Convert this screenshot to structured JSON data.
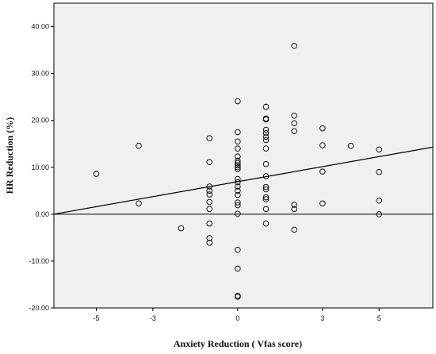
{
  "chart_data": {
    "type": "scatter",
    "title": "",
    "xlabel": "Anxiety Reduction ( Vfas score)",
    "ylabel": "HR Reduction (%)",
    "xlim": [
      -6.5,
      6.9
    ],
    "ylim": [
      -20,
      45
    ],
    "x_ticks": [
      -5,
      -3,
      0,
      3,
      5
    ],
    "x_tick_labels": [
      "-5",
      "-3",
      "0",
      "3",
      "5"
    ],
    "y_ticks": [
      -20,
      -10,
      0,
      10,
      20,
      30,
      40
    ],
    "y_tick_labels": [
      "-20.00",
      "-10.00",
      "0.00",
      "10.00",
      "20.00",
      "30.00",
      "40.00"
    ],
    "grid": false,
    "background": "#f0f0f0",
    "reference_line_y": 0,
    "fit_line": {
      "points": [
        [
          -6.5,
          0.0
        ],
        [
          6.9,
          14.3
        ]
      ]
    },
    "points": [
      [
        -5,
        8.6
      ],
      [
        -3.5,
        14.6
      ],
      [
        -3.5,
        2.3
      ],
      [
        -2,
        -3.0
      ],
      [
        -1,
        16.2
      ],
      [
        -1,
        11.1
      ],
      [
        -1,
        5.9
      ],
      [
        -1,
        5.0
      ],
      [
        -1,
        4.2
      ],
      [
        -1,
        2.6
      ],
      [
        -1,
        1.1
      ],
      [
        -1,
        -2.0
      ],
      [
        -1,
        -5.1
      ],
      [
        -1,
        -6.1
      ],
      [
        0,
        24.1
      ],
      [
        0,
        17.5
      ],
      [
        0,
        15.5
      ],
      [
        0,
        14.0
      ],
      [
        0,
        12.3
      ],
      [
        0,
        11.4
      ],
      [
        0,
        10.9
      ],
      [
        0,
        10.4
      ],
      [
        0,
        10.0
      ],
      [
        0,
        9.6
      ],
      [
        0,
        7.5
      ],
      [
        0,
        6.8
      ],
      [
        0,
        5.9
      ],
      [
        0,
        5.0
      ],
      [
        0,
        4.1
      ],
      [
        0,
        2.5
      ],
      [
        0,
        1.9
      ],
      [
        0,
        0.1
      ],
      [
        0,
        -7.6
      ],
      [
        0,
        -11.6
      ],
      [
        0,
        -17.4
      ],
      [
        0,
        -17.6
      ],
      [
        1,
        22.9
      ],
      [
        1,
        20.4
      ],
      [
        1,
        20.2
      ],
      [
        1,
        18.0
      ],
      [
        1,
        17.3
      ],
      [
        1,
        16.5
      ],
      [
        1,
        15.8
      ],
      [
        1,
        14.0
      ],
      [
        1,
        10.7
      ],
      [
        1,
        8.1
      ],
      [
        1,
        5.8
      ],
      [
        1,
        5.3
      ],
      [
        1,
        3.6
      ],
      [
        1,
        3.2
      ],
      [
        1,
        1.1
      ],
      [
        1,
        -2.0
      ],
      [
        2,
        35.9
      ],
      [
        2,
        21.0
      ],
      [
        2,
        19.4
      ],
      [
        2,
        17.7
      ],
      [
        2,
        2.0
      ],
      [
        2,
        1.1
      ],
      [
        2,
        -3.3
      ],
      [
        3,
        18.3
      ],
      [
        3,
        14.7
      ],
      [
        3,
        9.1
      ],
      [
        3,
        2.3
      ],
      [
        4,
        14.6
      ],
      [
        5,
        13.8
      ],
      [
        5,
        9.0
      ],
      [
        5,
        2.9
      ],
      [
        5,
        0.0
      ]
    ]
  }
}
